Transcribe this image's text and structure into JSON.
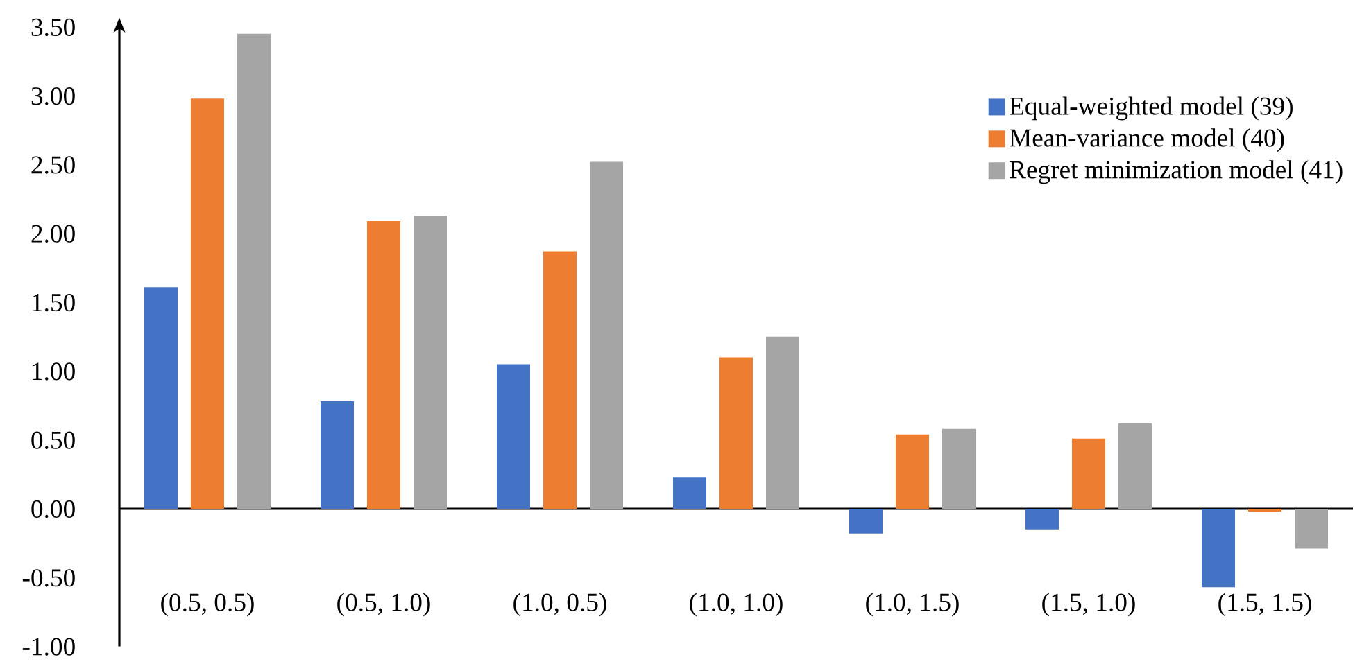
{
  "chart_data": {
    "type": "bar",
    "categories": [
      "(0.5,  0.5)",
      "(0.5,  1.0)",
      "(1.0,  0.5)",
      "(1.0,  1.0)",
      "(1.0,  1.5)",
      "(1.5,  1.0)",
      "(1.5,  1.5)"
    ],
    "series": [
      {
        "name": "Equal-weighted model (39)",
        "color": "#4472c4",
        "values": [
          1.61,
          0.78,
          1.05,
          0.23,
          -0.18,
          -0.15,
          -0.57
        ]
      },
      {
        "name": "Mean-variance model (40)",
        "color": "#ed7d31",
        "values": [
          2.98,
          2.09,
          1.87,
          1.1,
          0.54,
          0.51,
          -0.02
        ]
      },
      {
        "name": "Regret minimization model (41)",
        "color": "#a5a5a5",
        "values": [
          3.45,
          2.13,
          2.52,
          1.25,
          0.58,
          0.62,
          -0.29
        ]
      }
    ],
    "ylim": [
      -1.0,
      3.5
    ],
    "yticks": [
      {
        "value": -1.0,
        "label": "-1.00"
      },
      {
        "value": -0.5,
        "label": "-0.50"
      },
      {
        "value": 0.0,
        "label": "0.00"
      },
      {
        "value": 0.5,
        "label": "0.50"
      },
      {
        "value": 1.0,
        "label": "1.00"
      },
      {
        "value": 1.5,
        "label": "1.50"
      },
      {
        "value": 2.0,
        "label": "2.00"
      },
      {
        "value": 2.5,
        "label": "2.50"
      },
      {
        "value": 3.0,
        "label": "3.00"
      },
      {
        "value": 3.5,
        "label": "3.50"
      }
    ],
    "legend": "top right"
  }
}
